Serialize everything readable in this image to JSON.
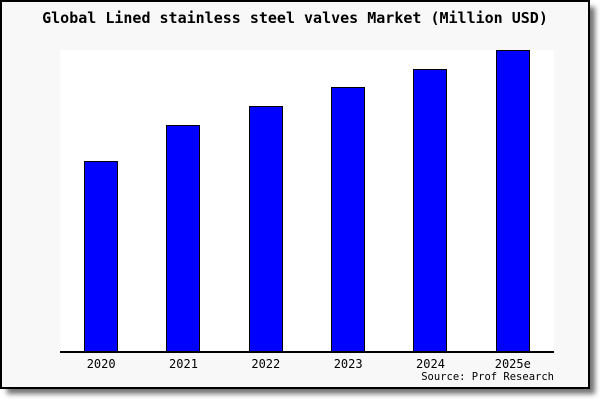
{
  "colors": {
    "bar_fill": "#0000ff",
    "bar_border": "#000000",
    "card_background": "#f8f8f8",
    "plot_background": "#ffffff",
    "axis": "#000000",
    "text": "#000000"
  },
  "chart_data": {
    "type": "bar",
    "title": "Global Lined stainless steel valves Market (Million USD)",
    "categories": [
      "2020",
      "2021",
      "2022",
      "2023",
      "2024",
      "2025e"
    ],
    "values": [
      63.1,
      75.1,
      81.4,
      87.7,
      93.7,
      100
    ],
    "xlabel": "",
    "ylabel": "",
    "ylim": [
      0,
      100
    ],
    "y_axis_shown": false,
    "gridlines": false,
    "legend": "none",
    "units_note": "no numeric y-axis shown; values are relative bar heights as % of tallest bar (2025e = 100)",
    "source": "Source: Prof Research"
  }
}
